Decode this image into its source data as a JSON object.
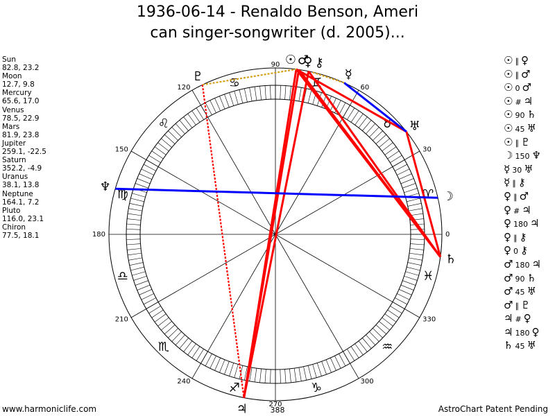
{
  "title": {
    "line1": "1936-06-14 - Renaldo Benson, Ameri",
    "line2": "can singer-songwriter (d. 2005)..."
  },
  "planets": [
    {
      "name": "Sun",
      "values": "82.8, 23.2"
    },
    {
      "name": "Moon",
      "values": "12.7, 9.8"
    },
    {
      "name": "Mercury",
      "values": "65.6, 17.0"
    },
    {
      "name": "Venus",
      "values": "78.5, 22.9"
    },
    {
      "name": "Mars",
      "values": "81.9, 23.8"
    },
    {
      "name": "Jupiter",
      "values": "259.1, -22.5"
    },
    {
      "name": "Saturn",
      "values": "352.2, -4.9"
    },
    {
      "name": "Uranus",
      "values": "38.1, 13.8"
    },
    {
      "name": "Neptune",
      "values": "164.1, 7.2"
    },
    {
      "name": "Pluto",
      "values": "116.0, 23.1"
    },
    {
      "name": "Chiron",
      "values": "77.5, 18.1"
    }
  ],
  "wheel": {
    "degree_labels": [
      "0",
      "30",
      "60",
      "90",
      "120",
      "150",
      "180",
      "210",
      "240",
      "270",
      "300",
      "330"
    ],
    "center_number": "388",
    "sign_glyphs": [
      "♈",
      "♉",
      "♊",
      "♋",
      "♌",
      "♍",
      "♎",
      "♏",
      "♐",
      "♑",
      "♒",
      "♓"
    ],
    "planet_glyphs": {
      "Sun": "☉",
      "Moon": "☽",
      "Mercury": "☿",
      "Venus": "♀",
      "Mars": "♂",
      "Jupiter": "♃",
      "Saturn": "♄",
      "Uranus": "♅",
      "Neptune": "♆",
      "Pluto": "♇",
      "Chiron": "⚷"
    }
  },
  "aspect_lines": [
    {
      "from": "Sun",
      "to": "Saturn",
      "color": "#ff0000",
      "style": "solid"
    },
    {
      "from": "Sun",
      "to": "Jupiter",
      "color": "#ff0000",
      "style": "solid"
    },
    {
      "from": "Mars",
      "to": "Jupiter",
      "color": "#ff0000",
      "style": "solid"
    },
    {
      "from": "Venus",
      "to": "Jupiter",
      "color": "#ff0000",
      "style": "solid"
    },
    {
      "from": "Mars",
      "to": "Saturn",
      "color": "#ff0000",
      "style": "solid"
    },
    {
      "from": "Sun",
      "to": "Uranus",
      "color": "#ff0000",
      "style": "solid"
    },
    {
      "from": "Venus",
      "to": "Saturn",
      "color": "#ff0000",
      "style": "solid"
    },
    {
      "from": "Uranus",
      "to": "Saturn",
      "color": "#ff0000",
      "style": "solid"
    },
    {
      "from": "Pluto",
      "to": "Jupiter",
      "color": "#ff0000",
      "style": "dotted"
    },
    {
      "from": "Mercury",
      "to": "Uranus",
      "color": "#0000ff",
      "style": "solid"
    },
    {
      "from": "Neptune",
      "to": "Moon",
      "color": "#0000ff",
      "style": "solid"
    },
    {
      "from": "Pluto",
      "to": "Sun",
      "color": "#d4a017",
      "style": "dotted"
    },
    {
      "from": "Mercury",
      "to": "Chiron",
      "color": "#d4a017",
      "style": "dotted"
    }
  ],
  "aspects": [
    {
      "p1": "☉",
      "aspect": "∥",
      "p2": "♀"
    },
    {
      "p1": "☉",
      "aspect": "∥",
      "p2": "♂"
    },
    {
      "p1": "☉",
      "aspect": "0",
      "p2": "♂"
    },
    {
      "p1": "☉",
      "aspect": "#",
      "p2": "♃"
    },
    {
      "p1": "☉",
      "aspect": "90",
      "p2": "♄"
    },
    {
      "p1": "☉",
      "aspect": "45",
      "p2": "♅"
    },
    {
      "p1": "☉",
      "aspect": "∥",
      "p2": "♇"
    },
    {
      "p1": "☽",
      "aspect": "150",
      "p2": "♆"
    },
    {
      "p1": "☿",
      "aspect": "30",
      "p2": "♅"
    },
    {
      "p1": "☿",
      "aspect": "∥",
      "p2": "⚷"
    },
    {
      "p1": "♀",
      "aspect": "∥",
      "p2": "♂"
    },
    {
      "p1": "♀",
      "aspect": "#",
      "p2": "♃"
    },
    {
      "p1": "♀",
      "aspect": "180",
      "p2": "♃"
    },
    {
      "p1": "♀",
      "aspect": "∥",
      "p2": "⚷"
    },
    {
      "p1": "♀",
      "aspect": "0",
      "p2": "⚷"
    },
    {
      "p1": "♂",
      "aspect": "180",
      "p2": "♃"
    },
    {
      "p1": "♂",
      "aspect": "90",
      "p2": "♄"
    },
    {
      "p1": "♂",
      "aspect": "45",
      "p2": "♅"
    },
    {
      "p1": "♂",
      "aspect": "∥",
      "p2": "♇"
    },
    {
      "p1": "♃",
      "aspect": "#",
      "p2": "♀"
    },
    {
      "p1": "♃",
      "aspect": "180",
      "p2": "♀"
    },
    {
      "p1": "♄",
      "aspect": "45",
      "p2": "♅"
    }
  ],
  "footer": {
    "left": "www.harmoniclife.com",
    "right": "AstroChart Patent Pending"
  }
}
